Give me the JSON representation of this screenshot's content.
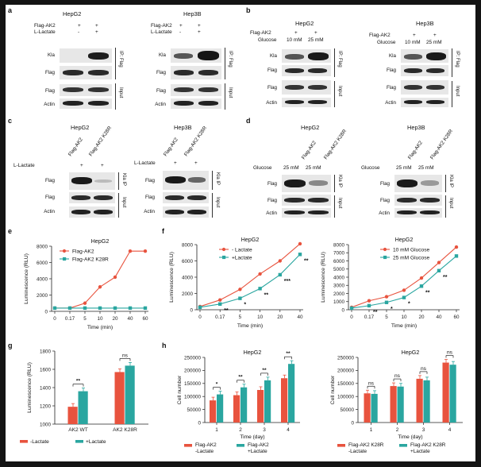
{
  "colors": {
    "red": "#e8533e",
    "teal": "#2aa6a0",
    "frame": "#141414"
  },
  "panel_a": {
    "label": "a",
    "hepg2": "HepG2",
    "hep3b": "Hep3B",
    "row1": "Flag-AK2",
    "row2": "L-Lactate",
    "vals1": [
      "+",
      "+"
    ],
    "vals2": [
      "-",
      "+"
    ],
    "blots": [
      "Kla",
      "Flag",
      "Flag",
      "Actin"
    ],
    "ip": "IP: Flag",
    "input": "Input"
  },
  "panel_b": {
    "label": "b",
    "hepg2": "HepG2",
    "hep3b": "Hep3B",
    "row1": "Flag-AK2",
    "row2": "Glucose",
    "vals1": [
      "+",
      "+"
    ],
    "vals2": [
      "10 mM",
      "25 mM"
    ],
    "blots": [
      "Kla",
      "Flag",
      "Flag",
      "Actin"
    ],
    "ip": "IP: Flag",
    "input": "Input"
  },
  "panel_c": {
    "label": "c",
    "hepg2": "HepG2",
    "hep3b": "Hep3B",
    "cols": [
      "Flag-AK2",
      "Flag-AK2 K28R"
    ],
    "row": "L-Lactate",
    "vals": [
      "+",
      "+"
    ],
    "blots": [
      "Flag",
      "Flag",
      "Actin"
    ],
    "ip": "Kla IP",
    "input": "Input"
  },
  "panel_d": {
    "label": "d",
    "hepg2": "HepG2",
    "hep3b": "Hep3B",
    "cols": [
      "Flag-AK2",
      "Flag-AK2 K28R"
    ],
    "row": "Glucose",
    "vals": [
      "25 mM",
      "25 mM"
    ],
    "blots": [
      "Flag",
      "Flag",
      "Actin"
    ],
    "ip": "Kla IP",
    "input": "Input"
  },
  "panel_e": {
    "label": "e"
  },
  "panel_f": {
    "label": "f"
  },
  "panel_g": {
    "label": "g"
  },
  "panel_h": {
    "label": "h"
  },
  "sig": {
    "s3": "***",
    "s2": "**",
    "s1": "*",
    "ns": "ns"
  },
  "chart_data": [
    {
      "id": "e",
      "type": "line",
      "title": "HepG2",
      "xlabel": "Time (min)",
      "ylabel": "Luminescence (RLU)",
      "x": [
        "0",
        "0.17",
        "5",
        "10",
        "20",
        "40",
        "60"
      ],
      "ylim": [
        0,
        8000
      ],
      "yticks": [
        0,
        2000,
        4000,
        6000,
        8000
      ],
      "series": [
        {
          "name": "Flag-AK2",
          "color": "#e8533e",
          "values": [
            400,
            400,
            1000,
            3000,
            4200,
            7400,
            7400
          ]
        },
        {
          "name": "Flag-AK2 K28R",
          "color": "#2aa6a0",
          "values": [
            400,
            400,
            400,
            400,
            400,
            400,
            400
          ]
        }
      ]
    },
    {
      "id": "f1",
      "type": "line",
      "title": "HepG2",
      "xlabel": "Time (min)",
      "ylabel": "Luminescence (RLU)",
      "x": [
        "0",
        "0.17",
        "5",
        "10",
        "20",
        "40"
      ],
      "ylim": [
        0,
        8000
      ],
      "yticks": [
        0,
        2000,
        4000,
        6000,
        8000
      ],
      "series": [
        {
          "name": "- Lactate",
          "color": "#e8533e",
          "values": [
            400,
            1200,
            2500,
            4400,
            6000,
            8100
          ]
        },
        {
          "name": "+Lactate",
          "color": "#2aa6a0",
          "values": [
            300,
            700,
            1400,
            2600,
            4300,
            6800
          ]
        }
      ],
      "sig": [
        "**",
        "*",
        "**",
        "***",
        "**"
      ]
    },
    {
      "id": "f2",
      "type": "line",
      "title": "HepG2",
      "xlabel": "Time (min)",
      "ylabel": "Luminescence (RLU)",
      "x": [
        "0",
        "0.17",
        "5",
        "10",
        "20",
        "40",
        "60"
      ],
      "ylim": [
        0,
        8000
      ],
      "yticks": [
        0,
        1000,
        2000,
        3000,
        4000,
        5000,
        6000,
        7000,
        8000
      ],
      "series": [
        {
          "name": "10 mM Glucose",
          "color": "#e8533e",
          "values": [
            300,
            1100,
            1600,
            2400,
            3900,
            5800,
            7700
          ]
        },
        {
          "name": "25 mM Glucose",
          "color": "#2aa6a0",
          "values": [
            200,
            500,
            900,
            1500,
            2900,
            4800,
            6600
          ]
        }
      ],
      "sig": [
        "**",
        "*",
        "*",
        "**",
        "**"
      ]
    },
    {
      "id": "g",
      "type": "bar",
      "ylabel": "Luminescence (RLU)",
      "categories": [
        "AK2 WT",
        "AK2 K28R"
      ],
      "ylim": [
        1000,
        1800
      ],
      "yticks": [
        1000,
        1200,
        1400,
        1600,
        1800
      ],
      "series": [
        {
          "name": "-Lactate",
          "color": "#e8533e",
          "values": [
            1190,
            1570
          ]
        },
        {
          "name": "+Lactate",
          "color": "#2aa6a0",
          "values": [
            1360,
            1640
          ]
        }
      ],
      "sig": [
        "**",
        "ns"
      ]
    },
    {
      "id": "h1",
      "type": "bar",
      "title": "HepG2",
      "xlabel": "Time (day)",
      "ylabel": "Cell number",
      "categories": [
        "1",
        "2",
        "3",
        "4"
      ],
      "ylim": [
        0,
        250000
      ],
      "yticks": [
        0,
        50000,
        100000,
        150000,
        200000,
        250000
      ],
      "ytick_labels": [
        "0",
        "50000",
        "100000",
        "150000",
        "200000",
        "250000"
      ],
      "series": [
        {
          "name": "Flag-AK2 -Lactate",
          "color": "#e8533e",
          "values": [
            85000,
            105000,
            125000,
            170000
          ]
        },
        {
          "name": "Flag-AK2 +Lactate",
          "color": "#2aa6a0",
          "values": [
            108000,
            135000,
            162000,
            225000
          ]
        }
      ],
      "sig": [
        "*",
        "**",
        "**",
        "**"
      ]
    },
    {
      "id": "h2",
      "type": "bar",
      "title": "HepG2",
      "xlabel": "Time (day)",
      "ylabel": "Cell number",
      "categories": [
        "1",
        "2",
        "3",
        "4"
      ],
      "ylim": [
        0,
        250000
      ],
      "yticks": [
        0,
        50000,
        100000,
        150000,
        200000,
        250000
      ],
      "ytick_labels": [
        "0",
        "50000",
        "100000",
        "150000",
        "200000",
        "250000"
      ],
      "series": [
        {
          "name": "Flag-AK2 K28R -Lactate",
          "color": "#e8533e",
          "values": [
            112000,
            140000,
            168000,
            230000
          ]
        },
        {
          "name": "Flag-AK2 K28R +Lactate",
          "color": "#2aa6a0",
          "values": [
            110000,
            138000,
            162000,
            222000
          ]
        }
      ],
      "sig": [
        "ns",
        "ns",
        "ns",
        "ns"
      ]
    }
  ]
}
